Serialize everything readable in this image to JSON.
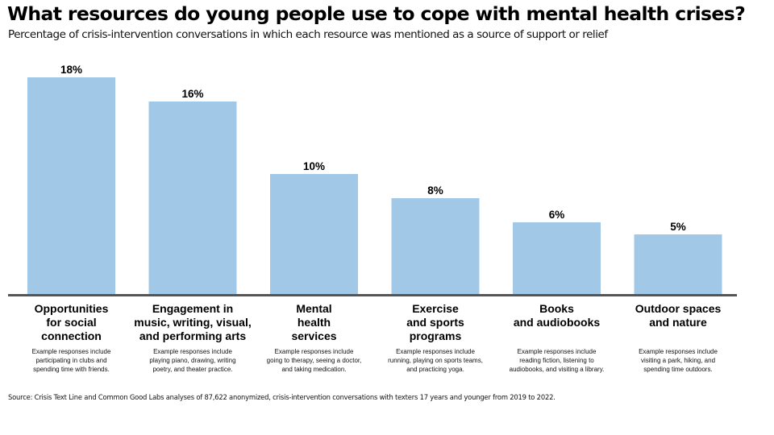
{
  "title": "What resources do young people use to cope with mental health crises?",
  "subtitle": "Percentage of crisis-intervention conversations in which each resource was mentioned as a source of support or relief",
  "source": "Source: Crisis Text Line and Common Good Labs analyses of 87,622 anonymized, crisis-intervention conversations with texters 17 years and younger from 2019 to 2022.",
  "chart_data": {
    "type": "bar",
    "title": "What resources do young people use to cope with mental health crises?",
    "subtitle": "Percentage of crisis-intervention conversations in which each resource was mentioned as a source of support or relief",
    "xlabel": "",
    "ylabel": "",
    "ylim": [
      0,
      18
    ],
    "grid": false,
    "bar_color": "#a2c8e8",
    "axis_color": "#555555",
    "categories": [
      "Opportunities\nfor social\nconnection",
      "Engagement in\nmusic, writing, visual,\nand performing arts",
      "Mental\nhealth\nservices",
      "Exercise\nand sports\nprograms",
      "Books\nand audiobooks",
      "Outdoor spaces\nand nature"
    ],
    "values": [
      18,
      16,
      10,
      8,
      6,
      5
    ],
    "data_labels": [
      "18%",
      "16%",
      "10%",
      "8%",
      "6%",
      "5%"
    ],
    "descriptions": [
      "Example responses include\nparticipating in clubs and\nspending time with friends.",
      "Example responses include\nplaying piano, drawing, writing\npoetry, and theater practice.",
      "Example responses include\ngoing to therapy, seeing a doctor,\nand taking medication.",
      "Example responses include\nrunning, playing on sports teams,\nand practicing yoga.",
      "Example responses include\nreading fiction, listening to\naudiobooks, and visiting a library.",
      "Example responses include\nvisiting a park, hiking, and\nspending time outdoors."
    ]
  }
}
